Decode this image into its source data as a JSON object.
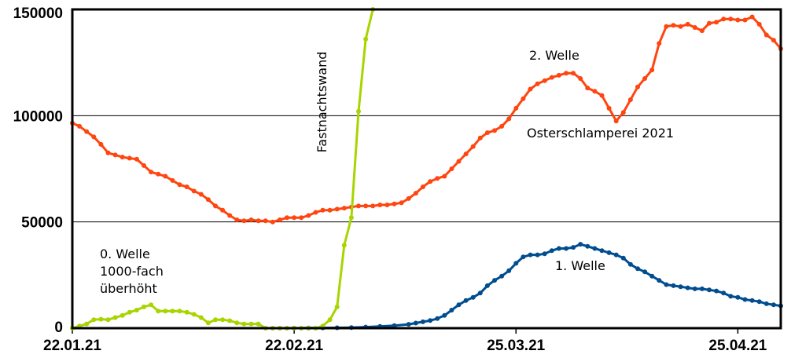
{
  "chart_data": {
    "type": "line",
    "title": "",
    "xlabel": "",
    "ylabel": "",
    "ylim": [
      0,
      150000
    ],
    "xlim": [
      "2021-01-22",
      "2021-05-01"
    ],
    "grid": {
      "horizontal": true,
      "vertical": false
    },
    "y_ticks": [
      {
        "value": 0,
        "label": "0"
      },
      {
        "value": 50000,
        "label": "50000"
      },
      {
        "value": 100000,
        "label": "100000"
      },
      {
        "value": 150000,
        "label": "150000"
      }
    ],
    "x_ticks": [
      {
        "date": "2021-01-22",
        "label": "22.01.21"
      },
      {
        "date": "2021-02-22",
        "label": "22.02.21"
      },
      {
        "date": "2021-03-25",
        "label": "25.03.21"
      },
      {
        "date": "2021-04-25",
        "label": "25.04.21"
      }
    ],
    "series": [
      {
        "name": "2. Welle",
        "color": "#ff4510",
        "points": [
          [
            "2021-01-22",
            96500
          ],
          [
            "2021-01-23",
            95000
          ],
          [
            "2021-01-24",
            92500
          ],
          [
            "2021-01-25",
            90000
          ],
          [
            "2021-01-26",
            86500
          ],
          [
            "2021-01-27",
            82500
          ],
          [
            "2021-01-28",
            81500
          ],
          [
            "2021-01-29",
            80500
          ],
          [
            "2021-01-30",
            80000
          ],
          [
            "2021-01-31",
            79500
          ],
          [
            "2021-02-01",
            76500
          ],
          [
            "2021-02-02",
            73500
          ],
          [
            "2021-02-03",
            72500
          ],
          [
            "2021-02-04",
            71500
          ],
          [
            "2021-02-05",
            69500
          ],
          [
            "2021-02-06",
            67500
          ],
          [
            "2021-02-07",
            66500
          ],
          [
            "2021-02-08",
            64500
          ],
          [
            "2021-02-09",
            63000
          ],
          [
            "2021-02-10",
            60500
          ],
          [
            "2021-02-11",
            57500
          ],
          [
            "2021-02-12",
            55500
          ],
          [
            "2021-02-13",
            53000
          ],
          [
            "2021-02-14",
            51000
          ],
          [
            "2021-02-15",
            50500
          ],
          [
            "2021-02-16",
            51000
          ],
          [
            "2021-02-17",
            50500
          ],
          [
            "2021-02-18",
            50500
          ],
          [
            "2021-02-19",
            50000
          ],
          [
            "2021-02-20",
            51000
          ],
          [
            "2021-02-21",
            52000
          ],
          [
            "2021-02-22",
            52000
          ],
          [
            "2021-02-23",
            52000
          ],
          [
            "2021-02-24",
            53000
          ],
          [
            "2021-02-25",
            54500
          ],
          [
            "2021-02-26",
            55500
          ],
          [
            "2021-02-27",
            55500
          ],
          [
            "2021-02-28",
            56000
          ],
          [
            "2021-03-01",
            56500
          ],
          [
            "2021-03-02",
            57000
          ],
          [
            "2021-03-03",
            57500
          ],
          [
            "2021-03-04",
            57500
          ],
          [
            "2021-03-05",
            57500
          ],
          [
            "2021-03-06",
            58000
          ],
          [
            "2021-03-07",
            58000
          ],
          [
            "2021-03-08",
            58500
          ],
          [
            "2021-03-09",
            59000
          ],
          [
            "2021-03-10",
            61000
          ],
          [
            "2021-03-11",
            63500
          ],
          [
            "2021-03-12",
            66500
          ],
          [
            "2021-03-13",
            69000
          ],
          [
            "2021-03-14",
            70500
          ],
          [
            "2021-03-15",
            71500
          ],
          [
            "2021-03-16",
            75000
          ],
          [
            "2021-03-17",
            78500
          ],
          [
            "2021-03-18",
            82000
          ],
          [
            "2021-03-19",
            85500
          ],
          [
            "2021-03-20",
            89500
          ],
          [
            "2021-03-21",
            92000
          ],
          [
            "2021-03-22",
            93000
          ],
          [
            "2021-03-23",
            95000
          ],
          [
            "2021-03-24",
            98500
          ],
          [
            "2021-03-25",
            103500
          ],
          [
            "2021-03-26",
            108000
          ],
          [
            "2021-03-27",
            112500
          ],
          [
            "2021-03-28",
            115000
          ],
          [
            "2021-03-29",
            116500
          ],
          [
            "2021-03-30",
            118000
          ],
          [
            "2021-03-31",
            119000
          ],
          [
            "2021-04-01",
            120000
          ],
          [
            "2021-04-02",
            120000
          ],
          [
            "2021-04-03",
            117500
          ],
          [
            "2021-04-04",
            113000
          ],
          [
            "2021-04-05",
            111500
          ],
          [
            "2021-04-06",
            109500
          ],
          [
            "2021-04-07",
            103500
          ],
          [
            "2021-04-08",
            97500
          ],
          [
            "2021-04-09",
            101500
          ],
          [
            "2021-04-10",
            107500
          ],
          [
            "2021-04-11",
            113500
          ],
          [
            "2021-04-12",
            117500
          ],
          [
            "2021-04-13",
            121500
          ],
          [
            "2021-04-14",
            134000
          ],
          [
            "2021-04-15",
            142000
          ],
          [
            "2021-04-16",
            142500
          ],
          [
            "2021-04-17",
            142000
          ],
          [
            "2021-04-18",
            143000
          ],
          [
            "2021-04-19",
            141500
          ],
          [
            "2021-04-20",
            140000
          ],
          [
            "2021-04-21",
            143500
          ],
          [
            "2021-04-22",
            144000
          ],
          [
            "2021-04-23",
            145500
          ],
          [
            "2021-04-24",
            145500
          ],
          [
            "2021-04-25",
            145000
          ],
          [
            "2021-04-26",
            145000
          ],
          [
            "2021-04-27",
            146500
          ],
          [
            "2021-04-28",
            143000
          ],
          [
            "2021-04-29",
            138000
          ],
          [
            "2021-04-30",
            135500
          ],
          [
            "2021-05-01",
            131500
          ]
        ]
      },
      {
        "name": "1. Welle",
        "color": "#004d8f",
        "points": [
          [
            "2021-02-22",
            0
          ],
          [
            "2021-02-24",
            100
          ],
          [
            "2021-02-26",
            150
          ],
          [
            "2021-02-28",
            200
          ],
          [
            "2021-03-02",
            300
          ],
          [
            "2021-03-04",
            500
          ],
          [
            "2021-03-06",
            800
          ],
          [
            "2021-03-08",
            1200
          ],
          [
            "2021-03-10",
            1800
          ],
          [
            "2021-03-11",
            2400
          ],
          [
            "2021-03-12",
            3000
          ],
          [
            "2021-03-13",
            3600
          ],
          [
            "2021-03-14",
            4500
          ],
          [
            "2021-03-15",
            6000
          ],
          [
            "2021-03-16",
            8500
          ],
          [
            "2021-03-17",
            11000
          ],
          [
            "2021-03-18",
            13000
          ],
          [
            "2021-03-19",
            14500
          ],
          [
            "2021-03-20",
            16500
          ],
          [
            "2021-03-21",
            20000
          ],
          [
            "2021-03-22",
            22500
          ],
          [
            "2021-03-23",
            24500
          ],
          [
            "2021-03-24",
            27000
          ],
          [
            "2021-03-25",
            30500
          ],
          [
            "2021-03-26",
            33500
          ],
          [
            "2021-03-27",
            34500
          ],
          [
            "2021-03-28",
            34500
          ],
          [
            "2021-03-29",
            35000
          ],
          [
            "2021-03-30",
            36500
          ],
          [
            "2021-03-31",
            37500
          ],
          [
            "2021-04-01",
            37500
          ],
          [
            "2021-04-02",
            38000
          ],
          [
            "2021-04-03",
            39500
          ],
          [
            "2021-04-04",
            38500
          ],
          [
            "2021-04-05",
            37500
          ],
          [
            "2021-04-06",
            36500
          ],
          [
            "2021-04-07",
            35500
          ],
          [
            "2021-04-08",
            34500
          ],
          [
            "2021-04-09",
            33000
          ],
          [
            "2021-04-10",
            30000
          ],
          [
            "2021-04-11",
            28000
          ],
          [
            "2021-04-12",
            26500
          ],
          [
            "2021-04-13",
            24500
          ],
          [
            "2021-04-14",
            22500
          ],
          [
            "2021-04-15",
            20500
          ],
          [
            "2021-04-16",
            20000
          ],
          [
            "2021-04-17",
            19500
          ],
          [
            "2021-04-18",
            19000
          ],
          [
            "2021-04-19",
            18500
          ],
          [
            "2021-04-20",
            18500
          ],
          [
            "2021-04-21",
            18000
          ],
          [
            "2021-04-22",
            17500
          ],
          [
            "2021-04-23",
            16500
          ],
          [
            "2021-04-24",
            15000
          ],
          [
            "2021-04-25",
            14500
          ],
          [
            "2021-04-26",
            13500
          ],
          [
            "2021-04-27",
            13000
          ],
          [
            "2021-04-28",
            12500
          ],
          [
            "2021-04-29",
            11500
          ],
          [
            "2021-04-30",
            11000
          ],
          [
            "2021-05-01",
            10500
          ]
        ]
      },
      {
        "name": "0. Welle 1000-fach überhöht",
        "color": "#a8d400",
        "points": [
          [
            "2021-01-22",
            0
          ],
          [
            "2021-01-23",
            1000
          ],
          [
            "2021-01-24",
            2000
          ],
          [
            "2021-01-25",
            4000
          ],
          [
            "2021-01-26",
            4200
          ],
          [
            "2021-01-27",
            4000
          ],
          [
            "2021-01-28",
            5000
          ],
          [
            "2021-01-29",
            6000
          ],
          [
            "2021-01-30",
            7500
          ],
          [
            "2021-01-31",
            8500
          ],
          [
            "2021-02-01",
            10000
          ],
          [
            "2021-02-02",
            11000
          ],
          [
            "2021-02-03",
            8000
          ],
          [
            "2021-02-04",
            8000
          ],
          [
            "2021-02-05",
            8000
          ],
          [
            "2021-02-06",
            8000
          ],
          [
            "2021-02-07",
            7500
          ],
          [
            "2021-02-08",
            6500
          ],
          [
            "2021-02-09",
            5000
          ],
          [
            "2021-02-10",
            2500
          ],
          [
            "2021-02-11",
            4000
          ],
          [
            "2021-02-12",
            4000
          ],
          [
            "2021-02-13",
            3500
          ],
          [
            "2021-02-14",
            2500
          ],
          [
            "2021-02-15",
            2000
          ],
          [
            "2021-02-16",
            2000
          ],
          [
            "2021-02-17",
            2000
          ],
          [
            "2021-02-18",
            0
          ],
          [
            "2021-02-19",
            0
          ],
          [
            "2021-02-20",
            0
          ],
          [
            "2021-02-21",
            0
          ],
          [
            "2021-02-22",
            0
          ],
          [
            "2021-02-23",
            0
          ],
          [
            "2021-02-24",
            0
          ],
          [
            "2021-02-25",
            0
          ],
          [
            "2021-02-26",
            1000
          ],
          [
            "2021-02-27",
            4000
          ],
          [
            "2021-02-28",
            10000
          ],
          [
            "2021-03-01",
            39000
          ],
          [
            "2021-03-02",
            52000
          ],
          [
            "2021-03-03",
            102000
          ],
          [
            "2021-03-04",
            136000
          ],
          [
            "2021-03-05",
            150000
          ]
        ]
      }
    ],
    "annotations": [
      {
        "text": "2. Welle"
      },
      {
        "text": "Osterschlamperei 2021"
      },
      {
        "text": "1. Welle"
      },
      {
        "text": "0. Welle"
      },
      {
        "text": "1000-fach"
      },
      {
        "text": "überhöht"
      },
      {
        "text": "Fastnachtswand"
      }
    ]
  }
}
